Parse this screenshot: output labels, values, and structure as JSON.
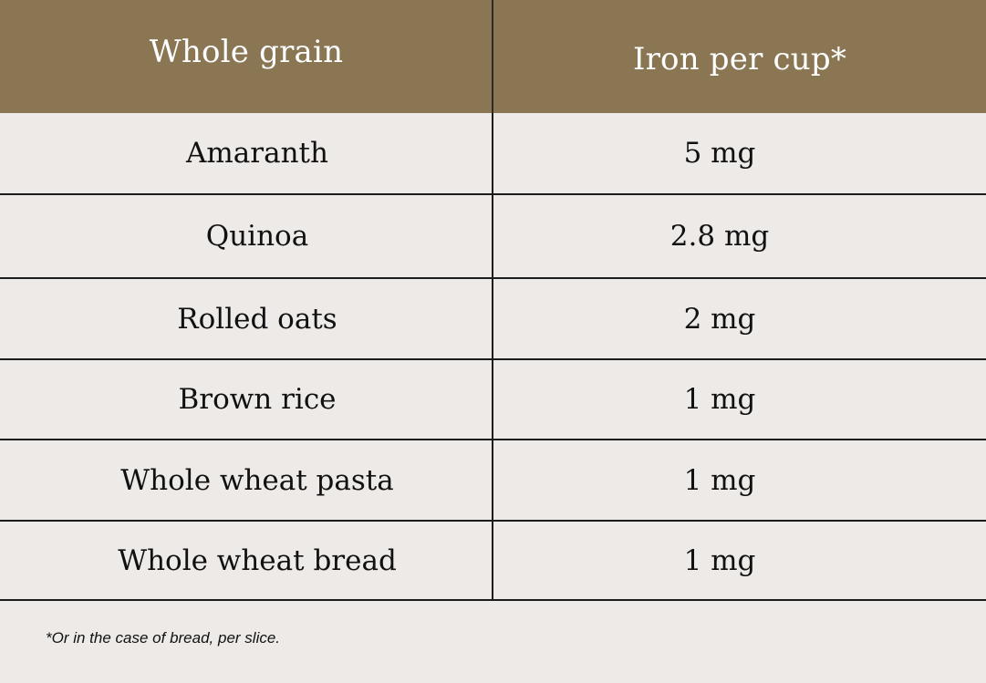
{
  "table": {
    "headers": [
      "Whole grain",
      "Iron per cup*"
    ],
    "rows": [
      [
        "Amaranth",
        "5 mg"
      ],
      [
        "Quinoa",
        "2.8 mg"
      ],
      [
        "Rolled oats",
        "2 mg"
      ],
      [
        "Brown rice",
        "1 mg"
      ],
      [
        "Whole wheat pasta",
        "1 mg"
      ],
      [
        "Whole wheat bread",
        "1 mg"
      ]
    ]
  },
  "footnote": "*Or in the case of bread, per slice.",
  "colors": {
    "header_background": "#8b7654",
    "body_background": "#edeae8",
    "header_text": "#ffffff",
    "body_text": "#111111"
  }
}
